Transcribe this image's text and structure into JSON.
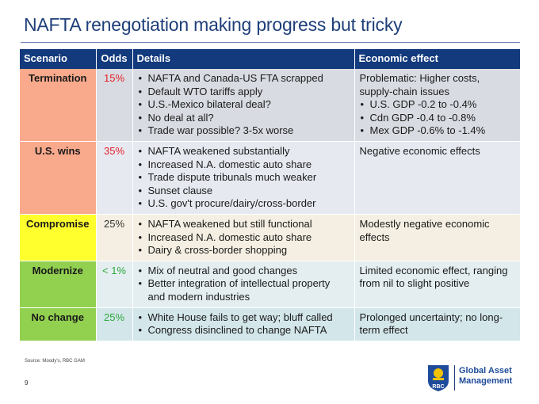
{
  "title": "NAFTA renegotiation making progress but tricky",
  "table": {
    "headers": {
      "scenario": "Scenario",
      "odds": "Odds",
      "details": "Details",
      "economic": "Economic effect"
    },
    "rows": [
      {
        "scenario": "Termination",
        "odds": "15%",
        "details": [
          "NAFTA and Canada-US FTA scrapped",
          "Default WTO tariffs apply",
          "U.S.-Mexico bilateral deal?",
          "No deal at all?",
          "Trade war possible? 3-5x worse"
        ],
        "economic_text": "Problematic: Higher costs, supply-chain issues",
        "economic_bullets": [
          "U.S. GDP -0.2 to -0.4%",
          "Cdn GDP -0.4 to -0.8%",
          "Mex GDP -0.6% to -1.4%"
        ]
      },
      {
        "scenario": "U.S. wins",
        "odds": "35%",
        "details": [
          "NAFTA weakened substantially",
          "Increased N.A. domestic auto share",
          "Trade dispute tribunals much weaker",
          "Sunset clause",
          "U.S. gov't procure/dairy/cross-border"
        ],
        "economic_text": "Negative economic effects",
        "economic_bullets": []
      },
      {
        "scenario": "Compromise",
        "odds": "25%",
        "details": [
          "NAFTA weakened but still functional",
          "Increased N.A. domestic auto share",
          "Dairy & cross-border shopping"
        ],
        "economic_text": "Modestly negative economic effects",
        "economic_bullets": []
      },
      {
        "scenario": "Modernize",
        "odds": "< 1%",
        "details": [
          "Mix of neutral and good changes",
          "Better integration of intellectual property and modern industries"
        ],
        "economic_text": "Limited economic effect, ranging from nil to slight positive",
        "economic_bullets": []
      },
      {
        "scenario": "No change",
        "odds": "25%",
        "details": [
          "White House fails to get way; bluff called",
          "Congress disinclined to change NAFTA"
        ],
        "economic_text": "Prolonged uncertainty; no long-term effect",
        "economic_bullets": []
      }
    ]
  },
  "footer": {
    "source": "Source: Moody's, RBC GAM",
    "page_number": "9",
    "brand_line1": "Global Asset",
    "brand_line2": "Management",
    "logo_text": "RBC"
  },
  "colors": {
    "title": "#1f3f7a",
    "header_bg": "#123a7c",
    "termination": "#f9a98c",
    "compromise": "#ffff2e",
    "modernize": "#92d050",
    "odds_red": "#e4222a",
    "odds_green": "#2eaa3c"
  }
}
